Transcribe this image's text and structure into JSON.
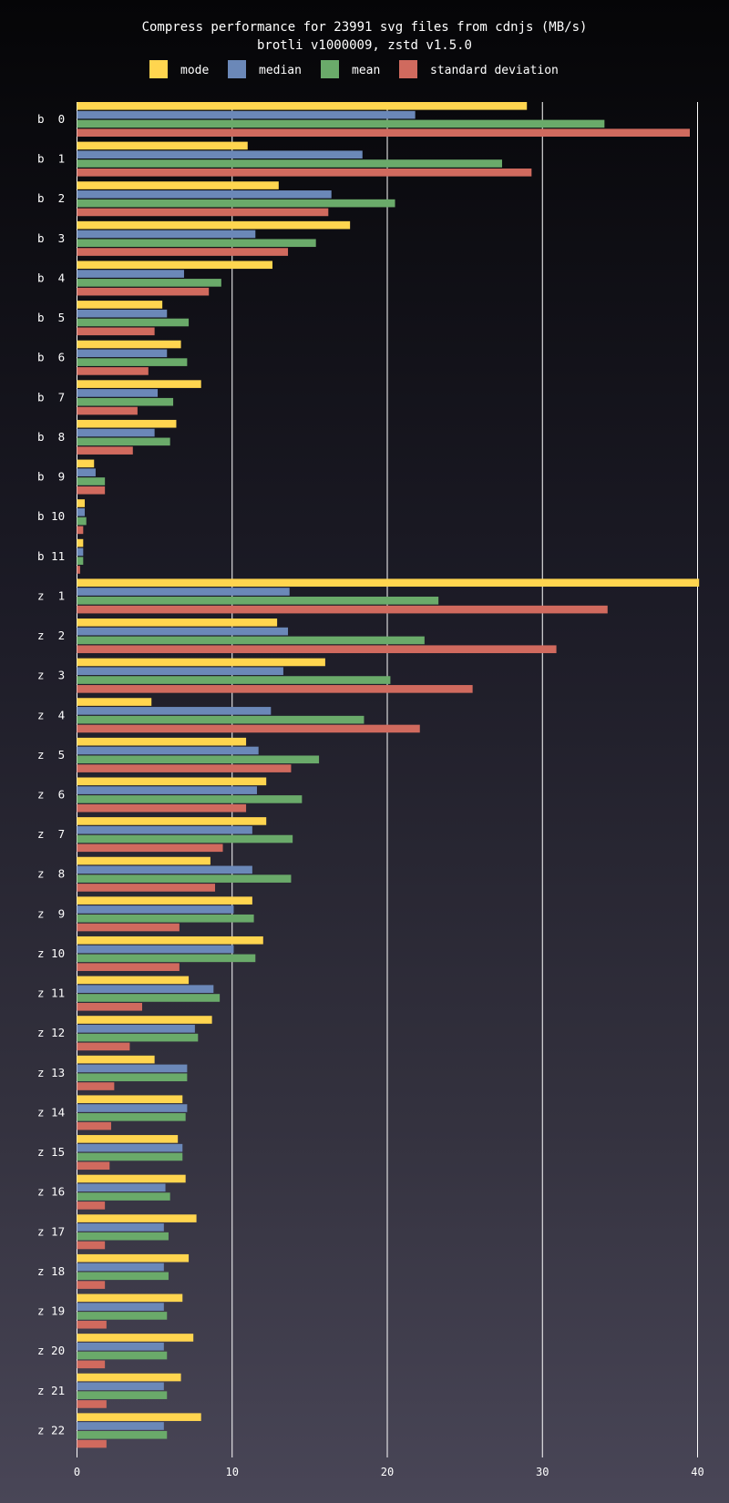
{
  "chart_data": {
    "type": "bar",
    "orientation": "horizontal",
    "title": "Compress performance for 23991 svg files from cdnjs (MB/s)",
    "subtitle": "brotli v1000009, zstd v1.5.0",
    "xlabel": "",
    "ylabel": "",
    "xlim": [
      0,
      40
    ],
    "x_ticks": [
      "0",
      "10",
      "20",
      "30",
      "40"
    ],
    "grid": true,
    "legend_position": "top",
    "categories": [
      "b  0",
      "b  1",
      "b  2",
      "b  3",
      "b  4",
      "b  5",
      "b  6",
      "b  7",
      "b  8",
      "b  9",
      "b 10",
      "b 11",
      "z  1",
      "z  2",
      "z  3",
      "z  4",
      "z  5",
      "z  6",
      "z  7",
      "z  8",
      "z  9",
      "z 10",
      "z 11",
      "z 12",
      "z 13",
      "z 14",
      "z 15",
      "z 16",
      "z 17",
      "z 18",
      "z 19",
      "z 20",
      "z 21",
      "z 22"
    ],
    "series": [
      {
        "name": "mode",
        "color": "#ffd54f",
        "values": [
          29.0,
          11.0,
          13.0,
          17.6,
          12.6,
          5.5,
          6.7,
          8.0,
          6.4,
          1.1,
          0.5,
          0.4,
          40.1,
          12.9,
          16.0,
          4.8,
          10.9,
          12.2,
          12.2,
          8.6,
          11.3,
          12.0,
          7.2,
          8.7,
          5.0,
          6.8,
          6.5,
          7.0,
          7.7,
          7.2,
          6.8,
          7.5,
          6.7,
          8.0
        ]
      },
      {
        "name": "median",
        "color": "#6b88b8",
        "values": [
          21.8,
          18.4,
          16.4,
          11.5,
          6.9,
          5.8,
          5.8,
          5.2,
          5.0,
          1.2,
          0.5,
          0.4,
          13.7,
          13.6,
          13.3,
          12.5,
          11.7,
          11.6,
          11.3,
          11.3,
          10.1,
          10.1,
          8.8,
          7.6,
          7.1,
          7.1,
          6.8,
          5.7,
          5.6,
          5.6,
          5.6,
          5.6,
          5.6,
          5.6
        ]
      },
      {
        "name": "mean",
        "color": "#6aaa6a",
        "values": [
          34.0,
          27.4,
          20.5,
          15.4,
          9.3,
          7.2,
          7.1,
          6.2,
          6.0,
          1.8,
          0.6,
          0.4,
          23.3,
          22.4,
          20.2,
          18.5,
          15.6,
          14.5,
          13.9,
          13.8,
          11.4,
          11.5,
          9.2,
          7.8,
          7.1,
          7.0,
          6.8,
          6.0,
          5.9,
          5.9,
          5.8,
          5.8,
          5.8,
          5.8
        ]
      },
      {
        "name": "standard deviation",
        "color": "#d06a5e",
        "values": [
          39.5,
          29.3,
          16.2,
          13.6,
          8.5,
          5.0,
          4.6,
          3.9,
          3.6,
          1.8,
          0.4,
          0.2,
          34.2,
          30.9,
          25.5,
          22.1,
          13.8,
          10.9,
          9.4,
          8.9,
          6.6,
          6.6,
          4.2,
          3.4,
          2.4,
          2.2,
          2.1,
          1.8,
          1.8,
          1.8,
          1.9,
          1.8,
          1.9,
          1.9
        ]
      }
    ]
  }
}
